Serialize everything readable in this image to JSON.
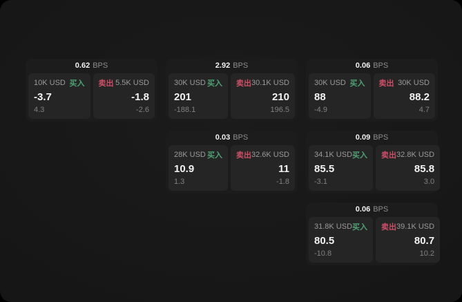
{
  "labels": {
    "buy": "买入",
    "sell": "卖出",
    "bps_unit": "BPS"
  },
  "colors": {
    "buy_green": "#4fa173",
    "sell_red": "#cc4f66",
    "window_bg": "#161616",
    "card_bg": "#1c1c1c",
    "panel_bg": "#252525"
  },
  "cards": [
    {
      "bps": "0.62",
      "buy": {
        "amount": "10K USD",
        "value": "-3.7",
        "sub": "4.3"
      },
      "sell": {
        "amount": "5.5K USD",
        "value": "-1.8",
        "sub": "-2.6"
      }
    },
    {
      "bps": "2.92",
      "buy": {
        "amount": "30K USD",
        "value": "201",
        "sub": "-188.1"
      },
      "sell": {
        "amount": "30.1K USD",
        "value": "210",
        "sub": "196.5"
      }
    },
    {
      "bps": "0.06",
      "buy": {
        "amount": "30K USD",
        "value": "88",
        "sub": "-4.9"
      },
      "sell": {
        "amount": "30K USD",
        "value": "88.2",
        "sub": "4.7"
      }
    },
    {
      "bps": "0.03",
      "buy": {
        "amount": "28K USD",
        "value": "10.9",
        "sub": "1.3"
      },
      "sell": {
        "amount": "32.6K USD",
        "value": "11",
        "sub": "-1.8"
      }
    },
    {
      "bps": "0.09",
      "buy": {
        "amount": "34.1K USD",
        "value": "85.5",
        "sub": "-3.1"
      },
      "sell": {
        "amount": "32.8K USD",
        "value": "85.8",
        "sub": "3.0"
      }
    },
    {
      "bps": "0.06",
      "buy": {
        "amount": "31.8K USD",
        "value": "80.5",
        "sub": "-10.8"
      },
      "sell": {
        "amount": "39.1K USD",
        "value": "80.7",
        "sub": "10.2"
      }
    }
  ]
}
